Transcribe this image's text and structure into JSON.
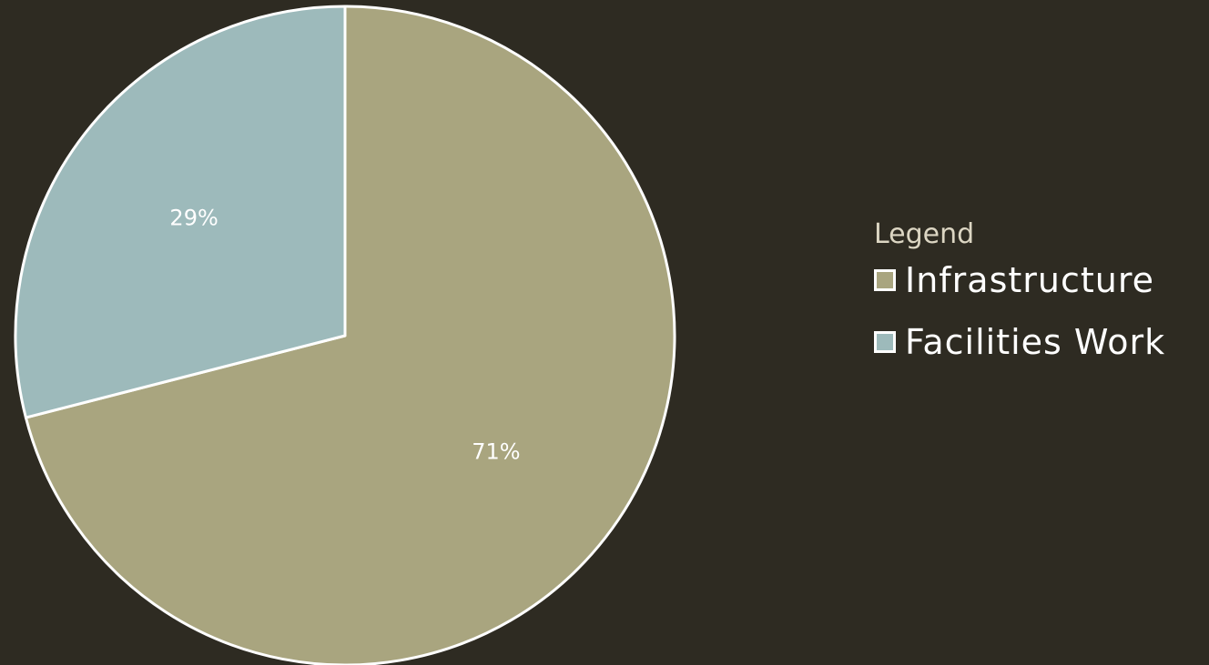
{
  "chart_data": {
    "type": "pie",
    "slices": [
      {
        "label": "Infrastructure",
        "value": 71,
        "display": "71%",
        "color": "#a9a57f"
      },
      {
        "label": "Facilities Work",
        "value": 29,
        "display": "29%",
        "color": "#9dbabb"
      }
    ],
    "legend": {
      "title": "Legend",
      "placement": "right"
    },
    "start_angle_deg": 0,
    "direction": "clockwise",
    "slice_border_color": "#ffffff"
  },
  "colors": {
    "background": "#2e2b22",
    "label_text": "#ffffff",
    "legend_title": "#dcd6c3"
  }
}
